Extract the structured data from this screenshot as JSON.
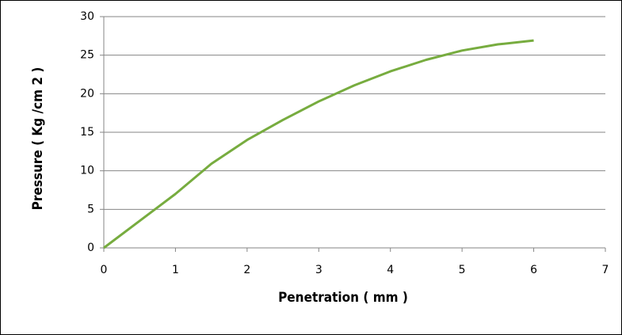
{
  "chart_data": {
    "type": "line",
    "x_label": "Penetration ( mm )",
    "y_label": "Pressure ( Kg /cm 2 )",
    "x": [
      0,
      0.5,
      1,
      1.5,
      2,
      2.5,
      3,
      3.5,
      4,
      4.5,
      5,
      5.5,
      6
    ],
    "values": [
      0,
      3.5,
      7,
      10.9,
      14,
      16.6,
      19,
      21.1,
      22.9,
      24.4,
      25.6,
      26.4,
      26.9
    ],
    "color": "#77ac3f",
    "xlim": [
      0,
      7
    ],
    "xticks": [
      0,
      1,
      2,
      3,
      4,
      5,
      6,
      7
    ],
    "ylim": [
      0,
      30
    ],
    "yticks": [
      0,
      5,
      10,
      15,
      20,
      25,
      30
    ],
    "grid": true
  }
}
